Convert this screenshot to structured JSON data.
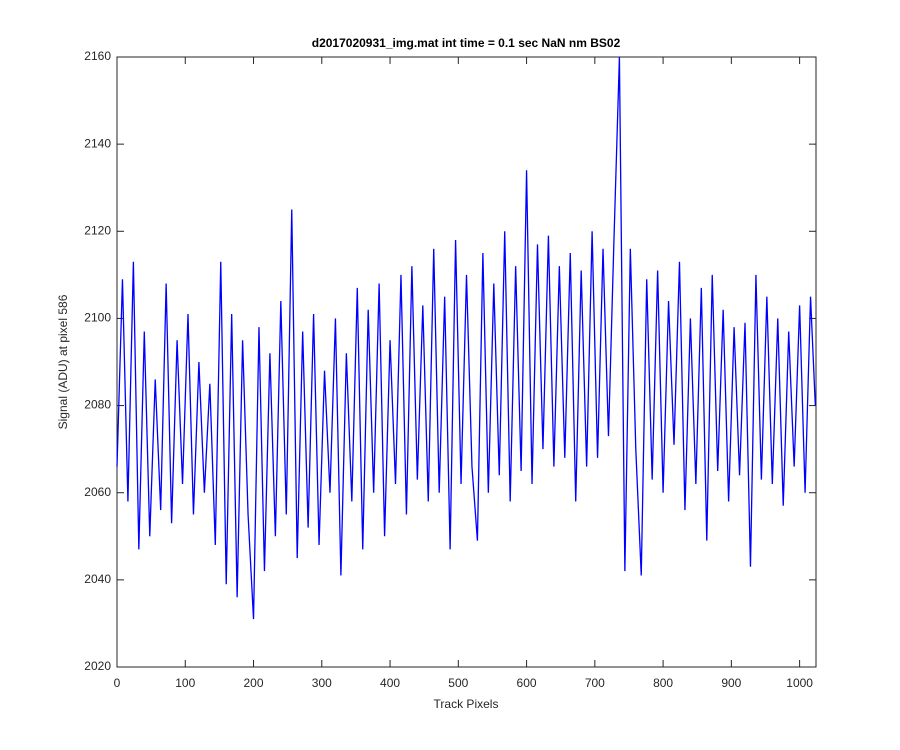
{
  "chart_data": {
    "type": "line",
    "title": "d2017020931_img.mat int time = 0.1 sec  NaN nm BS02",
    "x_label": "Track Pixels",
    "y_label": "Signal (ADU) at pixel 586",
    "xlim": [
      0,
      1024
    ],
    "ylim": [
      2020,
      2160
    ],
    "xticks": [
      0,
      100,
      200,
      300,
      400,
      500,
      600,
      700,
      800,
      900,
      1000
    ],
    "yticks": [
      2020,
      2040,
      2060,
      2080,
      2100,
      2120,
      2140,
      2160
    ],
    "grid": false,
    "x": [
      0,
      8,
      16,
      24,
      32,
      40,
      48,
      56,
      64,
      72,
      80,
      88,
      96,
      104,
      112,
      120,
      128,
      136,
      144,
      152,
      160,
      168,
      176,
      184,
      192,
      200,
      208,
      216,
      224,
      232,
      240,
      248,
      256,
      264,
      272,
      280,
      288,
      296,
      304,
      312,
      320,
      328,
      336,
      344,
      352,
      360,
      368,
      376,
      384,
      392,
      400,
      408,
      416,
      424,
      432,
      440,
      448,
      456,
      464,
      472,
      480,
      488,
      496,
      504,
      512,
      520,
      528,
      536,
      544,
      552,
      560,
      568,
      576,
      584,
      592,
      600,
      608,
      616,
      624,
      632,
      640,
      648,
      656,
      664,
      672,
      680,
      688,
      696,
      704,
      712,
      720,
      728,
      736,
      744,
      752,
      760,
      768,
      776,
      784,
      792,
      800,
      808,
      816,
      824,
      832,
      840,
      848,
      856,
      864,
      872,
      880,
      888,
      896,
      904,
      912,
      920,
      928,
      936,
      944,
      952,
      960,
      968,
      976,
      984,
      992,
      1000,
      1008,
      1016,
      1023
    ],
    "series": [
      {
        "name": "signal",
        "color": "#0000ff",
        "values": [
          2066,
          2109,
          2058,
          2113,
          2047,
          2097,
          2050,
          2086,
          2056,
          2108,
          2053,
          2095,
          2062,
          2101,
          2055,
          2090,
          2060,
          2085,
          2048,
          2113,
          2039,
          2101,
          2036,
          2095,
          2055,
          2031,
          2098,
          2042,
          2092,
          2050,
          2104,
          2055,
          2125,
          2045,
          2097,
          2052,
          2101,
          2048,
          2088,
          2060,
          2100,
          2041,
          2092,
          2058,
          2107,
          2047,
          2102,
          2060,
          2108,
          2050,
          2095,
          2062,
          2110,
          2055,
          2112,
          2063,
          2103,
          2058,
          2116,
          2060,
          2105,
          2047,
          2118,
          2062,
          2110,
          2066,
          2049,
          2115,
          2060,
          2108,
          2064,
          2120,
          2058,
          2112,
          2065,
          2134,
          2062,
          2117,
          2070,
          2119,
          2066,
          2112,
          2068,
          2115,
          2058,
          2111,
          2066,
          2120,
          2068,
          2116,
          2073,
          2118,
          2160,
          2042,
          2116,
          2070,
          2041,
          2109,
          2063,
          2111,
          2060,
          2104,
          2071,
          2113,
          2056,
          2100,
          2062,
          2107,
          2049,
          2110,
          2065,
          2102,
          2058,
          2098,
          2064,
          2099,
          2043,
          2110,
          2063,
          2105,
          2062,
          2100,
          2057,
          2097,
          2066,
          2103,
          2060,
          2105,
          2080
        ]
      }
    ]
  }
}
